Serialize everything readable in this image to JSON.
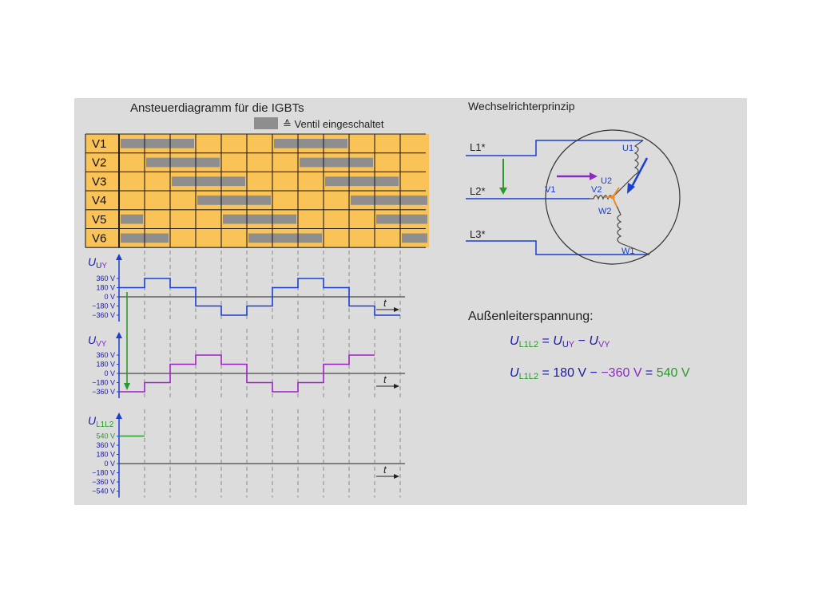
{
  "left": {
    "title": "Ansteuerdiagramm für die IGBTs",
    "legend_text": "≙ Ventil eingeschaltet",
    "legend_color": "#8e8e8e",
    "grid_color": "#f9c357",
    "rows": [
      {
        "label": "V1",
        "on": [
          [
            0,
            3
          ],
          [
            6,
            9
          ]
        ]
      },
      {
        "label": "V2",
        "on": [
          [
            1,
            4
          ],
          [
            7,
            10
          ]
        ]
      },
      {
        "label": "V3",
        "on": [
          [
            2,
            5
          ],
          [
            8,
            11
          ]
        ]
      },
      {
        "label": "V4",
        "on": [
          [
            3,
            6
          ],
          [
            9,
            12
          ]
        ]
      },
      {
        "label": "V5",
        "on": [
          [
            0,
            1
          ],
          [
            4,
            7
          ],
          [
            10,
            12
          ]
        ]
      },
      {
        "label": "V6",
        "on": [
          [
            0,
            2
          ],
          [
            5,
            8
          ],
          [
            11,
            12
          ]
        ]
      }
    ],
    "columns": 12
  },
  "plots": [
    {
      "name": "uuy",
      "sym": "U",
      "sub_a": "U",
      "sub_b": "Y",
      "sym_color": "#1a1aa8",
      "sub_a_color": "#1a1aa8",
      "sub_b_color": "#8a2bbf",
      "ticks": [
        "360 V",
        "180 V",
        "0 V",
        "−180 V",
        "−360 V"
      ],
      "tick_values": [
        360,
        180,
        0,
        -180,
        -360
      ],
      "color": "#1a3fd0",
      "values": [
        180,
        360,
        180,
        -180,
        -360,
        -180,
        180,
        360,
        180,
        -180,
        -360
      ],
      "t_label": "t"
    },
    {
      "name": "uvy",
      "sym": "U",
      "sub_a": "V",
      "sub_b": "Y",
      "sym_color": "#1a1aa8",
      "sub_a_color": "#8a2bbf",
      "sub_b_color": "#8a2bbf",
      "ticks": [
        "360 V",
        "180 V",
        "0 V",
        "−180 V",
        "−360 V"
      ],
      "tick_values": [
        360,
        180,
        0,
        -180,
        -360
      ],
      "color": "#a020c8",
      "values": [
        -360,
        -180,
        180,
        360,
        180,
        -180,
        -360,
        -180,
        180,
        360
      ],
      "t_label": "t"
    },
    {
      "name": "ul1l2",
      "sym": "U",
      "sub_a": "L1L2",
      "sub_b": "",
      "sym_color": "#1a1aa8",
      "sub_a_color": "#2a9a2a",
      "sub_b_color": "#2a9a2a",
      "ticks": [
        "540 V",
        "360 V",
        "180 V",
        "0 V",
        "−180 V",
        "−360 V",
        "−540 V"
      ],
      "tick_values": [
        540,
        360,
        180,
        0,
        -180,
        -360,
        -540
      ],
      "color": "#2a9a2a",
      "values": [
        540
      ],
      "t_label": "t"
    }
  ],
  "right": {
    "title": "Wechselrichterprinzip",
    "lines": [
      "L1*",
      "L2*",
      "L3*"
    ],
    "coil_labels": [
      "U1",
      "U2",
      "V1",
      "V2",
      "W2",
      "W1"
    ],
    "section_title": "Außenleiterspannung:",
    "eq1": {
      "u1": "U",
      "s1": "L1L2",
      "eq": " = ",
      "u2": "U",
      "s2a": "U",
      "s2b": "Y",
      "minus": " − ",
      "u3": "U",
      "s3a": "V",
      "s3b": "Y"
    },
    "eq2": {
      "u": "U",
      "s": "L1L2",
      "a": " = 180 V",
      "minus": " − ",
      "b": "−360 V",
      "eq": " = ",
      "c": "540 V"
    }
  },
  "colors": {
    "blue": "#1a1aa8",
    "purple": "#8a2bbf",
    "green": "#2a9a2a",
    "orange": "#f08a24"
  }
}
